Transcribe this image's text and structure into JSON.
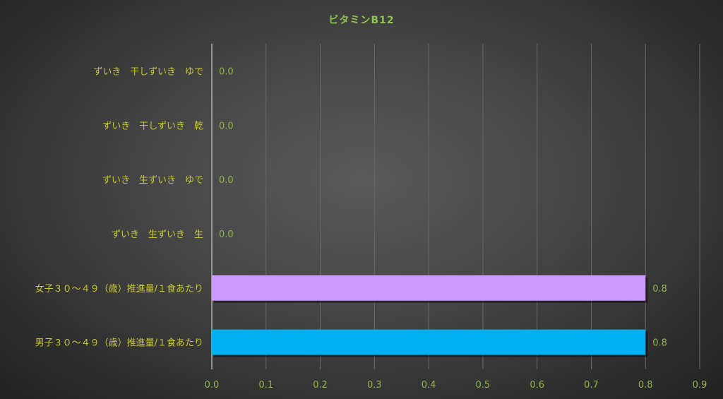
{
  "chart_data": {
    "type": "bar",
    "orientation": "horizontal",
    "title": "ビタミンB12",
    "categories": [
      "ずいき　干しずいき　ゆで",
      "ずいき　干しずいき　乾",
      "ずいき　生ずいき　ゆで",
      "ずいき　生ずいき　生",
      "女子３０～４９（歳）推進量/１食あたり",
      "男子３０～４９（歳）推進量/１食あたり"
    ],
    "values": [
      0.0,
      0.0,
      0.0,
      0.0,
      0.8,
      0.8
    ],
    "data_labels": [
      "0.0",
      "0.0",
      "0.0",
      "0.0",
      "0.8",
      "0.8"
    ],
    "bar_colors": [
      "#a0a0a0",
      "#a0a0a0",
      "#a0a0a0",
      "#a0a0a0",
      "#cc99ff",
      "#00b0f0"
    ],
    "xlim": [
      0,
      0.9
    ],
    "xticks": [
      "0.0",
      "0.1",
      "0.2",
      "0.3",
      "0.4",
      "0.5",
      "0.6",
      "0.7",
      "0.8",
      "0.9"
    ],
    "grid": "vertical",
    "legend": "none",
    "colors": {
      "title": "#8fc44a",
      "category_label": "#c8c832",
      "tick_label": "#8fb84a",
      "data_label": "#8fb84a"
    }
  }
}
